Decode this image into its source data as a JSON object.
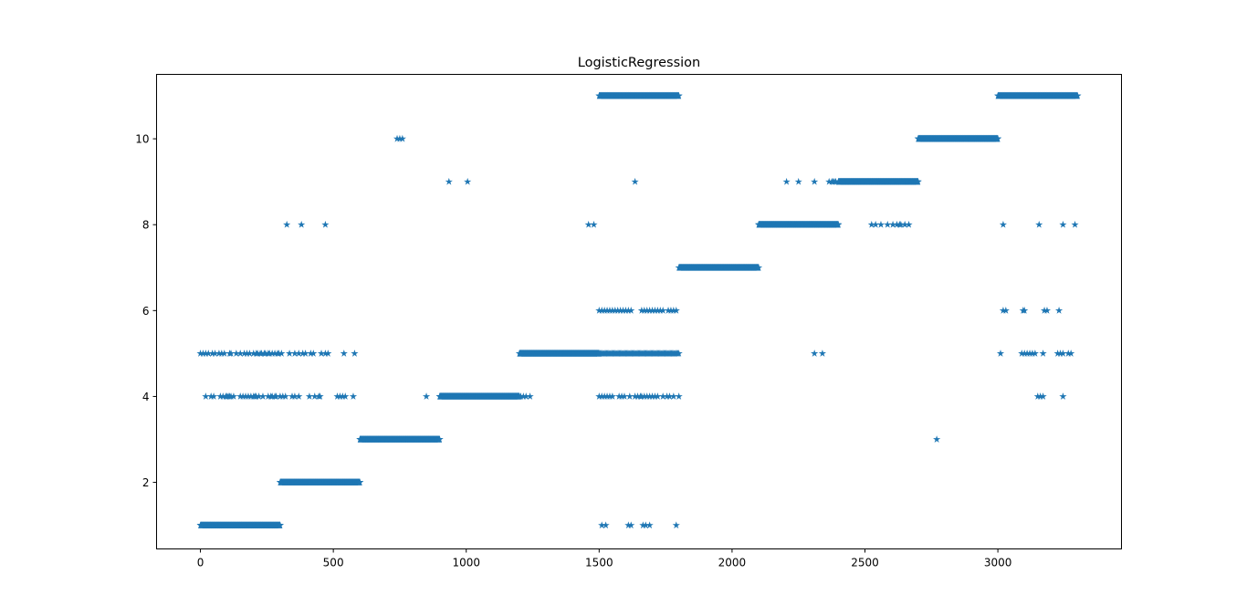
{
  "chart_data": {
    "type": "scatter",
    "title": "LogisticRegression",
    "xlabel": "",
    "ylabel": "",
    "xlim": [
      -165,
      3465
    ],
    "ylim": [
      0.45,
      11.5
    ],
    "xticks": [
      0,
      500,
      1000,
      1500,
      2000,
      2500,
      3000
    ],
    "yticks": [
      2,
      4,
      6,
      8,
      10
    ],
    "grid": false,
    "legend": "none",
    "marker": "star",
    "color": "#1f77b4",
    "segments": [
      {
        "y": 1,
        "x_start": 0,
        "x_end": 300
      },
      {
        "y": 2,
        "x_start": 300,
        "x_end": 600
      },
      {
        "y": 3,
        "x_start": 600,
        "x_end": 900
      },
      {
        "y": 4,
        "x_start": 900,
        "x_end": 1200
      },
      {
        "y": 5,
        "x_start": 1200,
        "x_end": 1500
      },
      {
        "y": 5,
        "x_start": 1500,
        "x_end": 1800,
        "step": 4
      },
      {
        "y": 7,
        "x_start": 1800,
        "x_end": 2100
      },
      {
        "y": 8,
        "x_start": 2100,
        "x_end": 2400
      },
      {
        "y": 9,
        "x_start": 2400,
        "x_end": 2700
      },
      {
        "y": 10,
        "x_start": 2700,
        "x_end": 3000
      },
      {
        "y": 11,
        "x_start": 1500,
        "x_end": 1800
      },
      {
        "y": 11,
        "x_start": 3000,
        "x_end": 3300
      }
    ],
    "points": [
      {
        "y": 5,
        "x": [
          0,
          10,
          20,
          30,
          45,
          55,
          70,
          80,
          90,
          110,
          115,
          135,
          150,
          165,
          175,
          185,
          200,
          210,
          215,
          225,
          230,
          240,
          245,
          255,
          260,
          270,
          280,
          290,
          295,
          305,
          335,
          355,
          370,
          385,
          395,
          415,
          425,
          455,
          470,
          480,
          540,
          580
        ]
      },
      {
        "y": 4,
        "x": [
          20,
          40,
          50,
          75,
          85,
          95,
          100,
          105,
          110,
          115,
          125,
          150,
          160,
          170,
          180,
          190,
          200,
          205,
          210,
          220,
          235,
          255,
          265,
          270,
          280,
          285,
          300,
          310,
          320,
          345,
          355,
          370,
          410,
          430,
          445,
          450,
          515,
          525,
          535,
          545,
          575,
          850
        ]
      },
      {
        "y": 8,
        "x": [
          325,
          380,
          470,
          1460,
          1480,
          2525,
          2540,
          2560,
          2585,
          2605,
          2620,
          2630,
          2635,
          2650,
          2665,
          3020,
          3155,
          3245,
          3290
        ]
      },
      {
        "y": 10,
        "x": [
          740,
          750,
          760
        ]
      },
      {
        "y": 9,
        "x": [
          935,
          1005,
          1635,
          2205,
          2250,
          2310,
          2365,
          2375,
          2380,
          2385,
          2390
        ]
      },
      {
        "y": 4,
        "x": [
          1205,
          1215,
          1225,
          1240,
          1500,
          1510,
          1520,
          1530,
          1540,
          1550,
          1575,
          1585,
          1595,
          1615,
          1635,
          1645,
          1655,
          1660,
          1670,
          1680,
          1690,
          1700,
          1710,
          1720,
          1740,
          1755,
          1765,
          1780,
          1800,
          3150,
          3160,
          3170,
          3245
        ]
      },
      {
        "y": 6,
        "x": [
          1500,
          1510,
          1520,
          1530,
          1540,
          1550,
          1560,
          1570,
          1580,
          1590,
          1600,
          1610,
          1620,
          1660,
          1670,
          1680,
          1690,
          1700,
          1710,
          1720,
          1730,
          1740,
          1760,
          1770,
          1780,
          1790,
          3020,
          3030,
          3095,
          3100,
          3175,
          3185,
          3230
        ]
      },
      {
        "y": 1,
        "x": [
          1510,
          1525,
          1610,
          1620,
          1665,
          1675,
          1690,
          1790
        ]
      },
      {
        "y": 5,
        "x": [
          2310,
          2340,
          3010,
          3090,
          3100,
          3110,
          3120,
          3130,
          3140,
          3170,
          3225,
          3235,
          3245,
          3265,
          3275
        ]
      },
      {
        "y": 3,
        "x": [
          2770
        ]
      }
    ]
  }
}
